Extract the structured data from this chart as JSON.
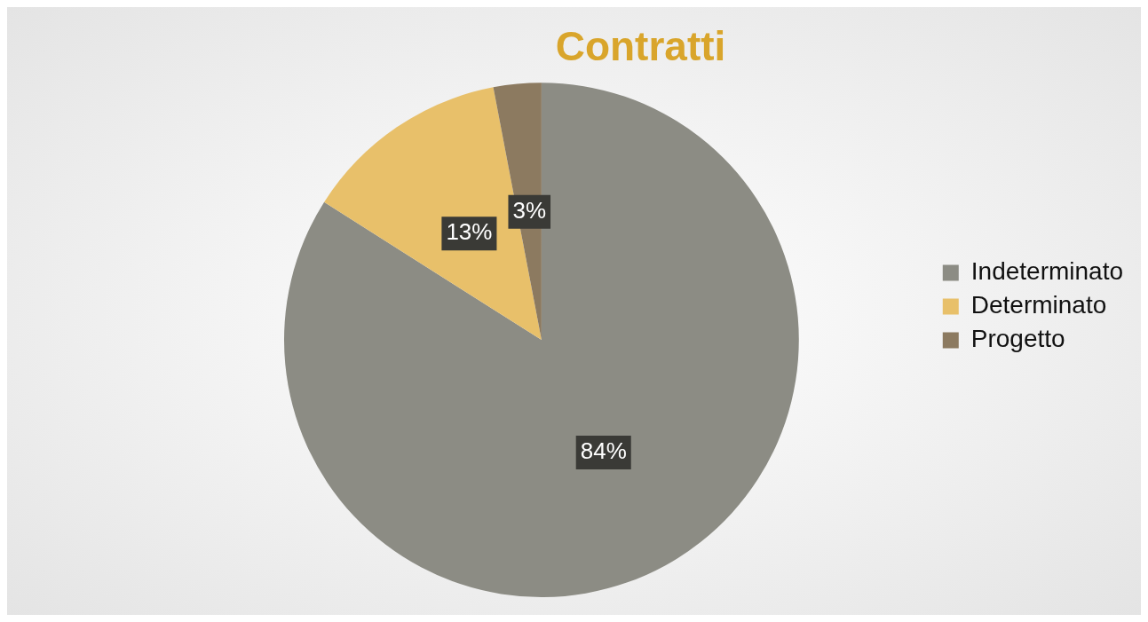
{
  "chart_data": {
    "type": "pie",
    "title": "Contratti",
    "categories": [
      "Indeterminato",
      "Determinato",
      "Progetto"
    ],
    "values": [
      84,
      13,
      3
    ],
    "colors": [
      "#8c8c84",
      "#e8c06a",
      "#8c7a60"
    ],
    "value_labels": [
      "84%",
      "13%",
      "3%"
    ],
    "legend": "right"
  }
}
